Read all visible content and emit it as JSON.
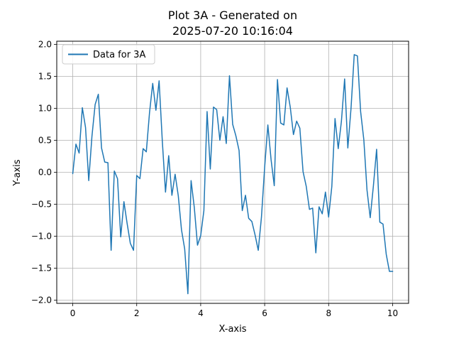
{
  "chart_data": {
    "type": "line",
    "title_line1": "Plot 3A - Generated on",
    "title_line2": "2025-07-20 10:16:04",
    "xlabel": "X-axis",
    "ylabel": "Y-axis",
    "xlim": [
      -0.5,
      10.5
    ],
    "ylim": [
      -2.05,
      2.05
    ],
    "xticks": [
      0,
      2,
      4,
      6,
      8,
      10
    ],
    "yticks": [
      -2.0,
      -1.5,
      -1.0,
      -0.5,
      0.0,
      0.5,
      1.0,
      1.5,
      2.0
    ],
    "xtick_labels": [
      "0",
      "2",
      "4",
      "6",
      "8",
      "10"
    ],
    "ytick_labels": [
      "−2.0",
      "−1.5",
      "−1.0",
      "−0.5",
      "0.0",
      "0.5",
      "1.0",
      "1.5",
      "2.0"
    ],
    "grid": true,
    "legend_position": "top-left",
    "colors": {
      "series": "#1f77b4",
      "grid": "#b0b0b0"
    },
    "series": [
      {
        "name": "Data for 3A",
        "x": [
          0.0,
          0.1,
          0.2,
          0.3,
          0.4,
          0.5,
          0.6,
          0.7,
          0.8,
          0.9,
          1.0,
          1.1,
          1.2,
          1.3,
          1.4,
          1.5,
          1.6,
          1.7,
          1.8,
          1.9,
          2.0,
          2.1,
          2.2,
          2.3,
          2.4,
          2.5,
          2.6,
          2.7,
          2.8,
          2.9,
          3.0,
          3.1,
          3.2,
          3.3,
          3.4,
          3.5,
          3.6,
          3.7,
          3.8,
          3.9,
          4.0,
          4.1,
          4.2,
          4.3,
          4.4,
          4.5,
          4.6,
          4.7,
          4.8,
          4.9,
          5.0,
          5.1,
          5.2,
          5.3,
          5.4,
          5.5,
          5.6,
          5.7,
          5.8,
          5.9,
          6.0,
          6.1,
          6.2,
          6.3,
          6.4,
          6.5,
          6.6,
          6.7,
          6.8,
          6.9,
          7.0,
          7.1,
          7.2,
          7.3,
          7.4,
          7.5,
          7.6,
          7.7,
          7.8,
          7.9,
          8.0,
          8.1,
          8.2,
          8.3,
          8.4,
          8.5,
          8.6,
          8.7,
          8.8,
          8.9,
          9.0,
          9.1,
          9.2,
          9.3,
          9.4,
          9.5,
          9.6,
          9.7,
          9.8,
          9.9,
          10.0
        ],
        "y": [
          -0.02,
          0.44,
          0.3,
          1.01,
          0.7,
          -0.13,
          0.56,
          1.06,
          1.22,
          0.38,
          0.16,
          0.15,
          -1.22,
          0.02,
          -0.1,
          -1.01,
          -0.46,
          -0.8,
          -1.11,
          -1.22,
          -0.05,
          -0.1,
          0.37,
          0.32,
          0.93,
          1.39,
          0.97,
          1.43,
          0.49,
          -0.31,
          0.26,
          -0.36,
          -0.03,
          -0.37,
          -0.9,
          -1.2,
          -1.9,
          -0.13,
          -0.55,
          -1.14,
          -0.99,
          -0.6,
          0.95,
          0.05,
          1.02,
          0.98,
          0.5,
          0.87,
          0.45,
          1.51,
          0.75,
          0.57,
          0.34,
          -0.6,
          -0.36,
          -0.72,
          -0.77,
          -0.98,
          -1.22,
          -0.7,
          0.08,
          0.74,
          0.2,
          -0.21,
          1.45,
          0.77,
          0.74,
          1.32,
          1.02,
          0.59,
          0.8,
          0.69,
          0.01,
          -0.22,
          -0.58,
          -0.56,
          -1.26,
          -0.54,
          -0.65,
          -0.31,
          -0.7,
          -0.22,
          0.84,
          0.37,
          0.8,
          1.46,
          0.38,
          1.0,
          1.84,
          1.82,
          0.95,
          0.51,
          -0.28,
          -0.71,
          -0.21,
          0.36,
          -0.78,
          -0.81,
          -1.28,
          -1.55,
          -1.55
        ]
      }
    ]
  }
}
